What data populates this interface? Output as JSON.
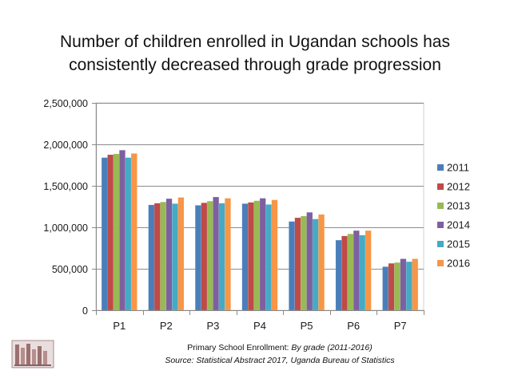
{
  "title": {
    "line1": "Number of children enrolled in Ugandan schools has",
    "line2": "consistently decreased through grade progression"
  },
  "caption": {
    "line1_plain": "Primary School Enrollment: ",
    "line1_italic": "By grade (2011-2016)",
    "line2": "Source: Statistical Abstract 2017, Uganda Bureau of Statistics"
  },
  "chart_data": {
    "type": "bar",
    "title": "Number of children enrolled in Ugandan schools has consistently decreased through grade progression",
    "xlabel": "",
    "ylabel": "",
    "ylim": [
      0,
      2500000
    ],
    "yticks": [
      0,
      500000,
      1000000,
      1500000,
      2000000,
      2500000
    ],
    "ytick_labels": [
      "0",
      "500,000",
      "1,000,000",
      "1,500,000",
      "2,000,000",
      "2,500,000"
    ],
    "grid": true,
    "legend_position": "right",
    "categories": [
      "P1",
      "P2",
      "P3",
      "P4",
      "P5",
      "P6",
      "P7"
    ],
    "series": [
      {
        "name": "2011",
        "color": "#4a7ebb",
        "values": [
          1840000,
          1270000,
          1265000,
          1285000,
          1070000,
          845000,
          525000
        ]
      },
      {
        "name": "2012",
        "color": "#be4b48",
        "values": [
          1875000,
          1290000,
          1295000,
          1300000,
          1115000,
          895000,
          565000
        ]
      },
      {
        "name": "2013",
        "color": "#98b954",
        "values": [
          1885000,
          1305000,
          1315000,
          1320000,
          1135000,
          920000,
          575000
        ]
      },
      {
        "name": "2014",
        "color": "#7d60a0",
        "values": [
          1930000,
          1345000,
          1365000,
          1350000,
          1180000,
          960000,
          620000
        ]
      },
      {
        "name": "2015",
        "color": "#46aac5",
        "values": [
          1840000,
          1285000,
          1290000,
          1275000,
          1100000,
          905000,
          585000
        ]
      },
      {
        "name": "2016",
        "color": "#f79646",
        "values": [
          1890000,
          1360000,
          1350000,
          1330000,
          1155000,
          960000,
          620000
        ]
      }
    ]
  }
}
